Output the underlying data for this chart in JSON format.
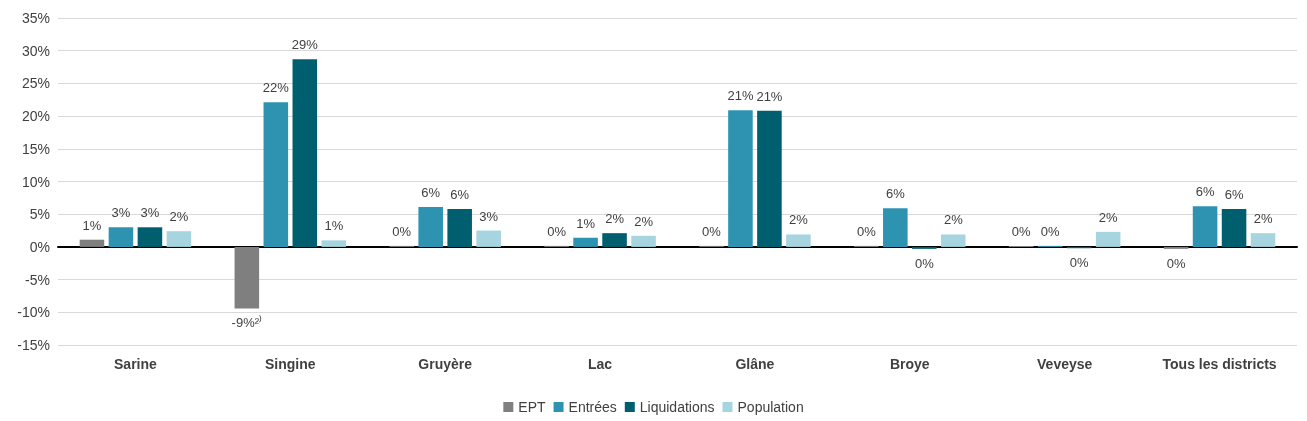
{
  "chart_data": {
    "type": "bar",
    "categories": [
      "Sarine",
      "Singine",
      "Gruyère",
      "Lac",
      "Glâne",
      "Broye",
      "Veveyse",
      "Tous les districts"
    ],
    "series": [
      {
        "name": "EPT",
        "color": "#7f7f7f",
        "values": [
          1.1,
          -9.4,
          0,
          0,
          0,
          0,
          0,
          -0.3
        ],
        "value_labels": [
          "1%",
          "-9%²⁾",
          "0%",
          "0%",
          "0%",
          "0%",
          "0%",
          "0%"
        ]
      },
      {
        "name": "Entrées",
        "color": "#2e93b0",
        "values": [
          3.0,
          22.1,
          6.1,
          1.4,
          20.9,
          5.9,
          0,
          6.2
        ],
        "value_labels": [
          "3%",
          "22%",
          "6%",
          "1%",
          "21%",
          "6%",
          "0%",
          "6%"
        ]
      },
      {
        "name": "Liquidations",
        "color": "#005f6e",
        "values": [
          3.0,
          28.7,
          5.8,
          2.1,
          20.8,
          -0.3,
          -0.2,
          5.8
        ],
        "value_labels": [
          "3%",
          "29%",
          "6%",
          "2%",
          "21%",
          "0%",
          "0%",
          "6%"
        ]
      },
      {
        "name": "Population",
        "color": "#a6d5e0",
        "values": [
          2.4,
          1.0,
          2.5,
          1.7,
          1.9,
          1.9,
          2.3,
          2.1
        ],
        "value_labels": [
          "2%",
          "1%",
          "3%",
          "2%",
          "2%",
          "2%",
          "2%",
          "2%"
        ]
      }
    ],
    "ylim": [
      -15,
      35
    ],
    "yticks": [
      {
        "value": -15,
        "label": "-15%"
      },
      {
        "value": -10,
        "label": "-10%"
      },
      {
        "value": -5,
        "label": "-5%"
      },
      {
        "value": 0,
        "label": "0%"
      },
      {
        "value": 5,
        "label": "5%"
      },
      {
        "value": 10,
        "label": "10%"
      },
      {
        "value": 15,
        "label": "15%"
      },
      {
        "value": 20,
        "label": "20%"
      },
      {
        "value": 25,
        "label": "25%"
      },
      {
        "value": 30,
        "label": "30%"
      },
      {
        "value": 35,
        "label": "35%"
      }
    ],
    "grid": "y",
    "legend": "bottom"
  }
}
